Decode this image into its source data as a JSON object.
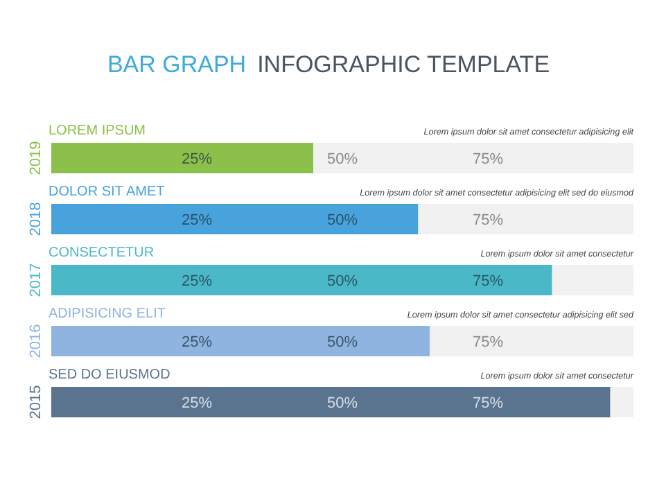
{
  "chart_data": {
    "type": "bar",
    "orientation": "horizontal",
    "title": "BAR GRAPH",
    "subtitle": "INFOGRAPHIC TEMPLATE",
    "categories": [
      "2019",
      "2018",
      "2017",
      "2016",
      "2015"
    ],
    "values": [
      45,
      63,
      86,
      65,
      96
    ],
    "colors": [
      "#8dc04a",
      "#48a3dc",
      "#4bb8c8",
      "#8fb4e0",
      "#5a7490"
    ],
    "xlim": [
      0,
      100
    ],
    "xticks": [
      {
        "value": 25,
        "label": "25%"
      },
      {
        "value": 50,
        "label": "50%"
      },
      {
        "value": 75,
        "label": "75%"
      }
    ],
    "annotations": [
      "LOREM IPSUM",
      "Lorem ipsum dolor sit amet consectetur adipisicing elit",
      "DOLOR SIT AMET",
      "Lorem ipsum dolor sit amet consectetur adipisicing elit sed do eiusmod",
      "CONSECTETUR",
      "Lorem ipsum dolor sit amet consectetur",
      "ADIPISICING ELIT",
      "Lorem ipsum dolor sit amet consectetur adipisicing elit sed",
      "SED DO EIUSMOD",
      "Lorem ipsum dolor sit amet consectetur"
    ]
  }
}
